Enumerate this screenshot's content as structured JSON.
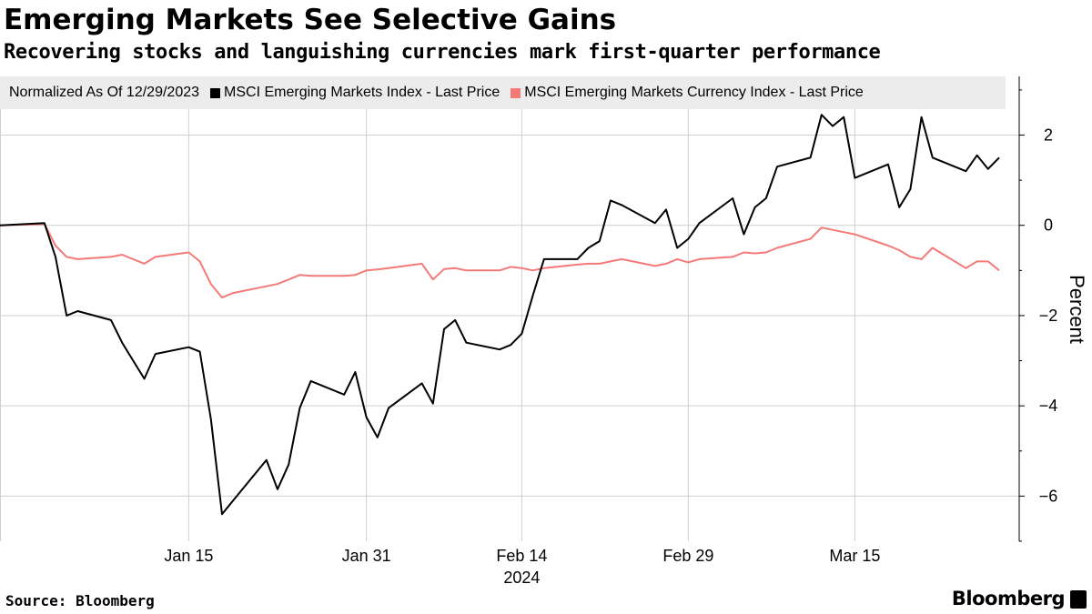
{
  "title": "Emerging Markets See Selective Gains",
  "subtitle": "Recovering stocks and languishing currencies mark first-quarter performance",
  "source": "Source: Bloomberg",
  "brand": "Bloomberg",
  "chart_data": {
    "type": "line",
    "legend_note": "Normalized As Of 12/29/2023",
    "ylabel": "Percent",
    "ylim": [
      -7,
      3.3
    ],
    "yticks": [
      2,
      0,
      -2,
      -4,
      -6
    ],
    "x_dates": [
      "2023-12-29",
      "2024-01-02",
      "2024-01-03",
      "2024-01-04",
      "2024-01-05",
      "2024-01-08",
      "2024-01-09",
      "2024-01-10",
      "2024-01-11",
      "2024-01-12",
      "2024-01-15",
      "2024-01-16",
      "2024-01-17",
      "2024-01-18",
      "2024-01-19",
      "2024-01-22",
      "2024-01-23",
      "2024-01-24",
      "2024-01-25",
      "2024-01-26",
      "2024-01-29",
      "2024-01-30",
      "2024-01-31",
      "2024-02-01",
      "2024-02-02",
      "2024-02-05",
      "2024-02-06",
      "2024-02-07",
      "2024-02-08",
      "2024-02-09",
      "2024-02-12",
      "2024-02-13",
      "2024-02-14",
      "2024-02-15",
      "2024-02-16",
      "2024-02-19",
      "2024-02-20",
      "2024-02-21",
      "2024-02-22",
      "2024-02-23",
      "2024-02-26",
      "2024-02-27",
      "2024-02-28",
      "2024-02-29",
      "2024-03-01",
      "2024-03-04",
      "2024-03-05",
      "2024-03-06",
      "2024-03-07",
      "2024-03-08",
      "2024-03-11",
      "2024-03-12",
      "2024-03-13",
      "2024-03-14",
      "2024-03-15",
      "2024-03-18",
      "2024-03-19",
      "2024-03-20",
      "2024-03-21",
      "2024-03-22",
      "2024-03-25",
      "2024-03-26",
      "2024-03-27",
      "2024-03-28"
    ],
    "x_ticks": [
      {
        "date": "2024-01-15",
        "label": "Jan 15"
      },
      {
        "date": "2024-01-31",
        "label": "Jan 31"
      },
      {
        "date": "2024-02-14",
        "label": "Feb 14"
      },
      {
        "date": "2024-02-29",
        "label": "Feb 29"
      },
      {
        "date": "2024-03-15",
        "label": "Mar 15"
      }
    ],
    "year_label": "2024",
    "series": [
      {
        "name": "MSCI Emerging Markets Index - Last Price",
        "color": "#000000",
        "values": [
          0,
          0.05,
          -0.7,
          -2.0,
          -1.9,
          -2.1,
          -2.6,
          -3.0,
          -3.4,
          -2.85,
          -2.7,
          -2.8,
          -4.3,
          -6.4,
          -6.1,
          -5.2,
          -5.85,
          -5.3,
          -4.05,
          -3.45,
          -3.75,
          -3.25,
          -4.25,
          -4.7,
          -4.05,
          -3.5,
          -3.95,
          -2.3,
          -2.1,
          -2.6,
          -2.75,
          -2.65,
          -2.4,
          -1.55,
          -0.75,
          -0.75,
          -0.5,
          -0.35,
          0.55,
          0.45,
          0.05,
          0.35,
          -0.5,
          -0.3,
          0.05,
          0.6,
          -0.2,
          0.4,
          0.6,
          1.3,
          1.5,
          2.45,
          2.2,
          2.4,
          1.05,
          1.35,
          0.4,
          0.8,
          2.4,
          1.5,
          1.2,
          1.55,
          1.25,
          1.5
        ]
      },
      {
        "name": "MSCI Emerging Markets Currency Index - Last Price",
        "color": "#f47a78",
        "values": [
          0,
          0.03,
          -0.45,
          -0.7,
          -0.75,
          -0.7,
          -0.65,
          -0.75,
          -0.85,
          -0.7,
          -0.6,
          -0.8,
          -1.3,
          -1.6,
          -1.5,
          -1.35,
          -1.3,
          -1.2,
          -1.1,
          -1.12,
          -1.12,
          -1.1,
          -1.0,
          -0.98,
          -0.95,
          -0.85,
          -1.2,
          -0.97,
          -0.95,
          -1.0,
          -1.0,
          -0.92,
          -0.95,
          -1.0,
          -0.95,
          -0.87,
          -0.85,
          -0.85,
          -0.8,
          -0.75,
          -0.9,
          -0.85,
          -0.75,
          -0.82,
          -0.75,
          -0.7,
          -0.6,
          -0.62,
          -0.6,
          -0.5,
          -0.3,
          -0.05,
          -0.1,
          -0.15,
          -0.2,
          -0.45,
          -0.55,
          -0.7,
          -0.75,
          -0.5,
          -0.95,
          -0.8,
          -0.8,
          -1.0
        ]
      }
    ]
  }
}
